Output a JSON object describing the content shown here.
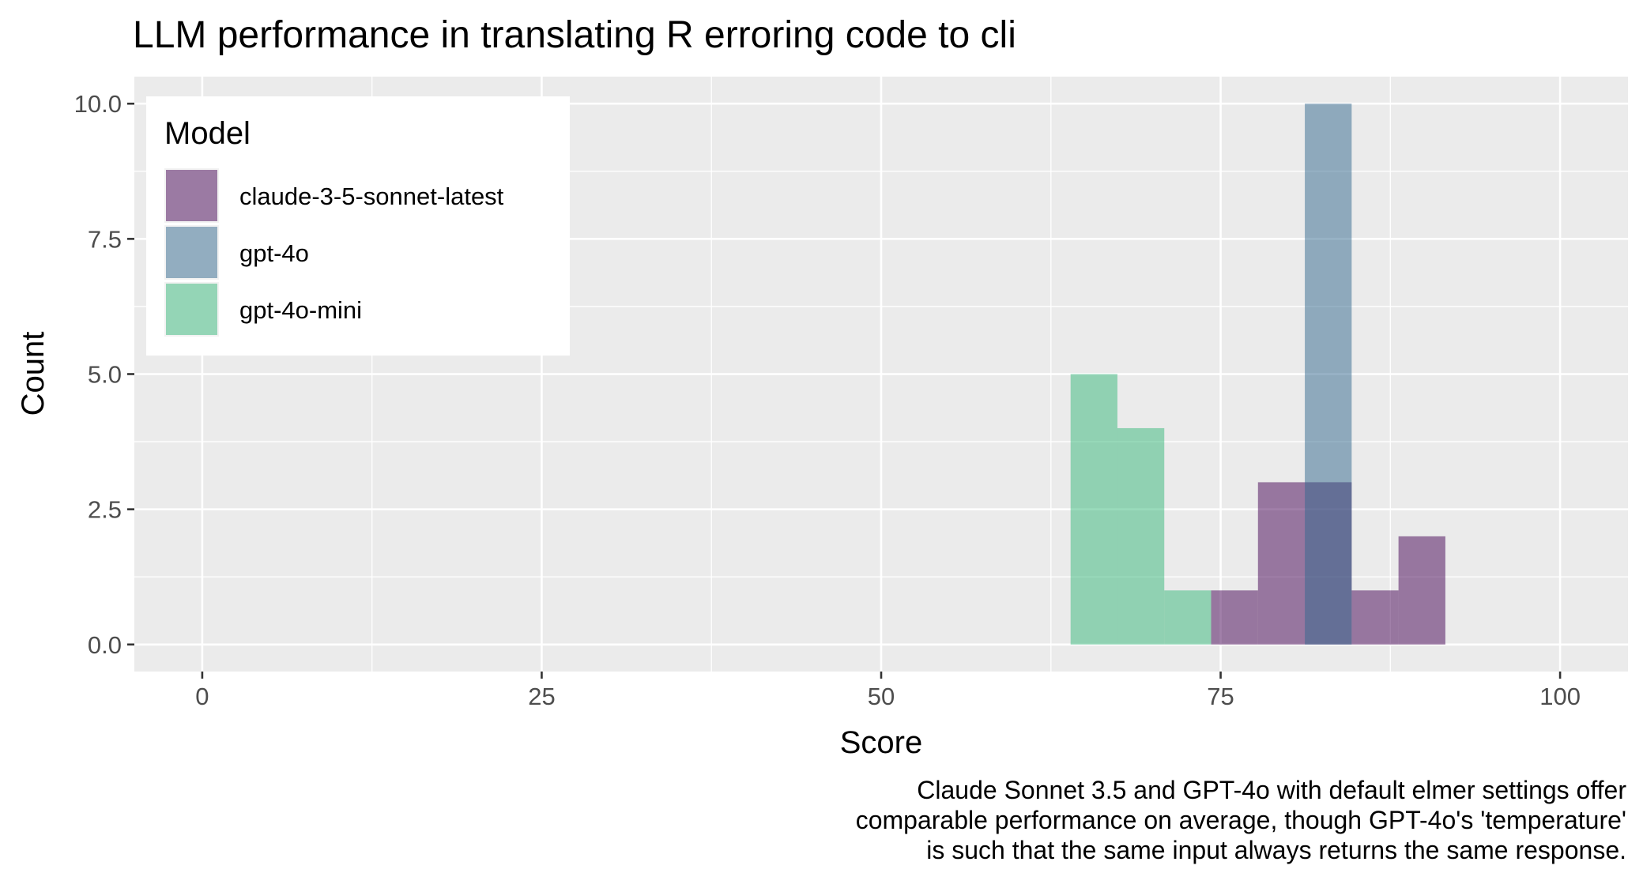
{
  "chart_data": {
    "type": "bar",
    "subtype": "overlapping-histogram",
    "title": "LLM performance in translating R erroring code to cli",
    "xlabel": "Score",
    "ylabel": "Count",
    "caption": [
      "Claude Sonnet 3.5 and GPT-4o with default elmer settings offer",
      "comparable performance on average, though GPT-4o's 'temperature'",
      "is such that the same input always returns the same response."
    ],
    "xlim": [
      -5,
      105
    ],
    "ylim": [
      -0.5,
      10.5
    ],
    "x_ticks": [
      0,
      25,
      50,
      75,
      100
    ],
    "x_tick_labels": [
      "0",
      "25",
      "50",
      "75",
      "100"
    ],
    "y_ticks": [
      0,
      2.5,
      5,
      7.5,
      10
    ],
    "y_tick_labels": [
      "0.0",
      "2.5",
      "5.0",
      "7.5",
      "10.0"
    ],
    "grid": true,
    "legend": {
      "title": "Model",
      "position": "top-left"
    },
    "bin_width": 3.45,
    "series": [
      {
        "name": "claude-3-5-sonnet-latest",
        "color": "#440154",
        "bins": [
          {
            "x0": 74.3,
            "x1": 77.75,
            "count": 1
          },
          {
            "x0": 77.75,
            "x1": 81.2,
            "count": 3
          },
          {
            "x0": 81.2,
            "x1": 84.65,
            "count": 3
          },
          {
            "x0": 84.65,
            "x1": 88.1,
            "count": 1
          },
          {
            "x0": 88.1,
            "x1": 91.55,
            "count": 2
          }
        ]
      },
      {
        "name": "gpt-4o",
        "color": "#31688E",
        "bins": [
          {
            "x0": 81.2,
            "x1": 84.65,
            "count": 10
          }
        ]
      },
      {
        "name": "gpt-4o-mini",
        "color": "#35B779",
        "bins": [
          {
            "x0": 63.95,
            "x1": 67.4,
            "count": 5
          },
          {
            "x0": 67.4,
            "x1": 70.85,
            "count": 4
          },
          {
            "x0": 70.85,
            "x1": 74.3,
            "count": 1
          }
        ]
      }
    ],
    "fill_alpha": 0.5
  }
}
